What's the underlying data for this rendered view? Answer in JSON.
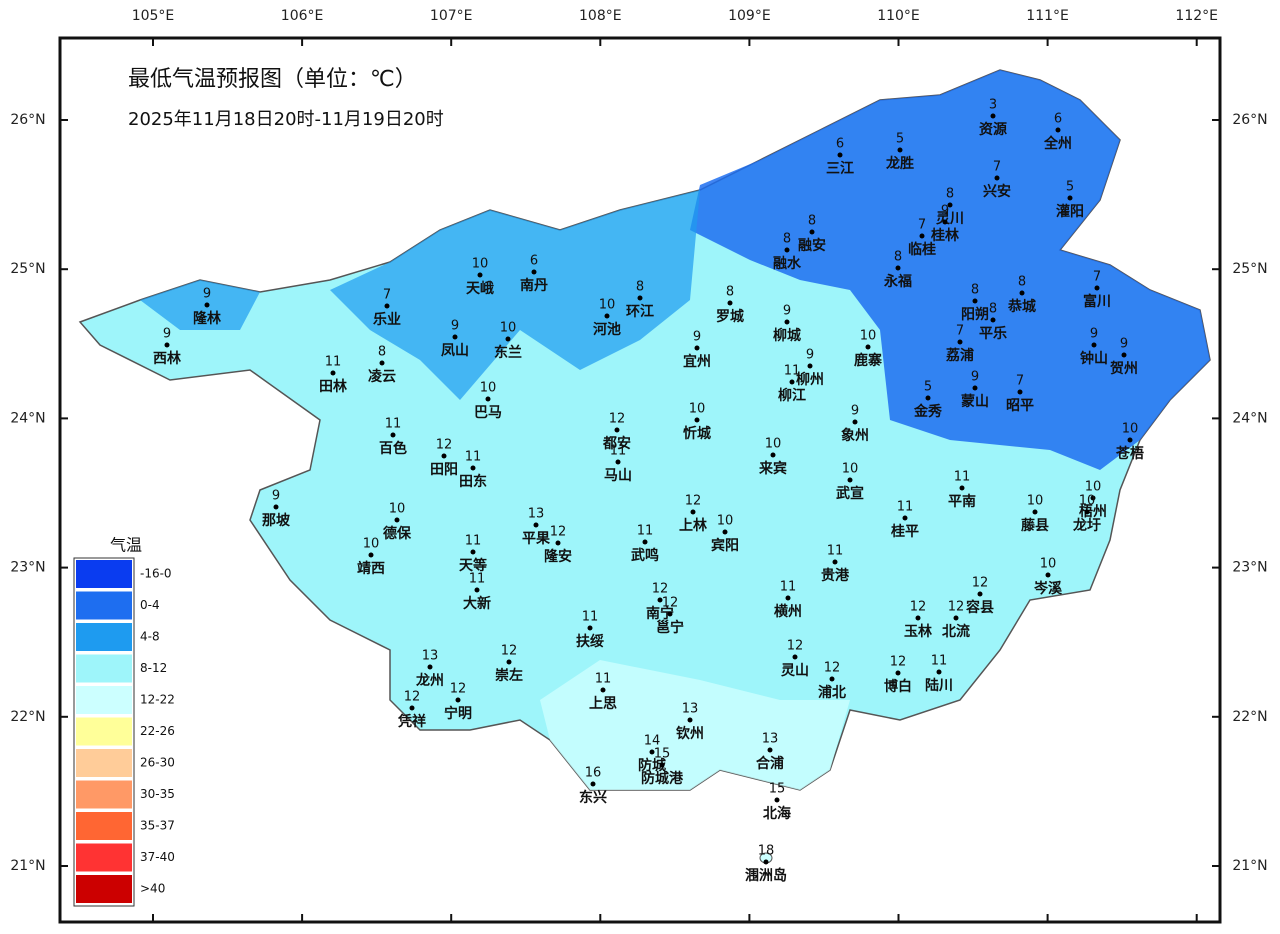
{
  "map": {
    "title": "最低气温预报图（单位：℃）",
    "subtitle": "2025年11月18日20时-11月19日20时",
    "lon_ticks": [
      {
        "value": 105,
        "label": "105°E"
      },
      {
        "value": 106,
        "label": "106°E"
      },
      {
        "value": 107,
        "label": "107°E"
      },
      {
        "value": 108,
        "label": "108°E"
      },
      {
        "value": 109,
        "label": "109°E"
      },
      {
        "value": 110,
        "label": "110°E"
      },
      {
        "value": 111,
        "label": "111°E"
      },
      {
        "value": 112,
        "label": "112°E"
      }
    ],
    "lat_ticks": [
      {
        "value": 26,
        "label": "26°N"
      },
      {
        "value": 25,
        "label": "25°N"
      },
      {
        "value": 24,
        "label": "24°N"
      },
      {
        "value": 23,
        "label": "23°N"
      },
      {
        "value": 22,
        "label": "22°N"
      },
      {
        "value": 21,
        "label": "21°N"
      }
    ],
    "legend": {
      "title": "气温",
      "items": [
        {
          "label": "-16-0",
          "color": "#0a3cf0"
        },
        {
          "label": "0-4",
          "color": "#1e6ef0"
        },
        {
          "label": "4-8",
          "color": "#1e9bf0"
        },
        {
          "label": "8-12",
          "color": "#9ef5fa"
        },
        {
          "label": "12-22",
          "color": "#ccffff"
        },
        {
          "label": "22-26",
          "color": "#ffff99"
        },
        {
          "label": "26-30",
          "color": "#ffcc99"
        },
        {
          "label": "30-35",
          "color": "#ff9966"
        },
        {
          "label": "35-37",
          "color": "#ff6633"
        },
        {
          "label": "37-40",
          "color": "#ff3333"
        },
        {
          "label": ">40",
          "color": "#cc0000"
        }
      ]
    },
    "stations": [
      {
        "name": "资源",
        "value": 3
      },
      {
        "name": "全州",
        "value": 6
      },
      {
        "name": "三江",
        "value": 6
      },
      {
        "name": "龙胜",
        "value": 5
      },
      {
        "name": "兴安",
        "value": 7
      },
      {
        "name": "灌阳",
        "value": 5
      },
      {
        "name": "灵川",
        "value": 8
      },
      {
        "name": "桂林",
        "value": 9
      },
      {
        "name": "临桂",
        "value": 7
      },
      {
        "name": "融安",
        "value": 8
      },
      {
        "name": "融水",
        "value": 8
      },
      {
        "name": "永福",
        "value": 8
      },
      {
        "name": "富川",
        "value": 7
      },
      {
        "name": "恭城",
        "value": 8
      },
      {
        "name": "阳朔",
        "value": 8
      },
      {
        "name": "平乐",
        "value": 8
      },
      {
        "name": "荔浦",
        "value": 7
      },
      {
        "name": "钟山",
        "value": 9
      },
      {
        "name": "贺州",
        "value": 9
      },
      {
        "name": "鹿寨",
        "value": 10
      },
      {
        "name": "柳城",
        "value": 9
      },
      {
        "name": "柳州",
        "value": 9
      },
      {
        "name": "柳江",
        "value": 11
      },
      {
        "name": "金秀",
        "value": 5
      },
      {
        "name": "蒙山",
        "value": 9
      },
      {
        "name": "昭平",
        "value": 7
      },
      {
        "name": "苍梧",
        "value": 10
      },
      {
        "name": "象州",
        "value": 9
      },
      {
        "name": "来宾",
        "value": 10
      },
      {
        "name": "武宣",
        "value": 10
      },
      {
        "name": "平南",
        "value": 11
      },
      {
        "name": "藤县",
        "value": 10
      },
      {
        "name": "梧州",
        "value": 10
      },
      {
        "name": "龙圩",
        "value": 10
      },
      {
        "name": "桂平",
        "value": 11
      },
      {
        "name": "贵港",
        "value": 11
      },
      {
        "name": "岑溪",
        "value": 10
      },
      {
        "name": "容县",
        "value": 12
      },
      {
        "name": "北流",
        "value": 12
      },
      {
        "name": "玉林",
        "value": 12
      },
      {
        "name": "横州",
        "value": 11
      },
      {
        "name": "灵山",
        "value": 12
      },
      {
        "name": "浦北",
        "value": 12
      },
      {
        "name": "博白",
        "value": 12
      },
      {
        "name": "陆川",
        "value": 11
      },
      {
        "name": "合浦",
        "value": 13
      },
      {
        "name": "北海",
        "value": 15
      },
      {
        "name": "涠洲岛",
        "value": 18
      },
      {
        "name": "钦州",
        "value": 13
      },
      {
        "name": "防城",
        "value": 14
      },
      {
        "name": "防城港",
        "value": 15
      },
      {
        "name": "东兴",
        "value": 16
      },
      {
        "name": "上思",
        "value": 11
      },
      {
        "name": "南宁",
        "value": 12
      },
      {
        "name": "邕宁",
        "value": 12
      },
      {
        "name": "扶绥",
        "value": 11
      },
      {
        "name": "武鸣",
        "value": 11
      },
      {
        "name": "宾阳",
        "value": 10
      },
      {
        "name": "上林",
        "value": 12
      },
      {
        "name": "都安",
        "value": 12
      },
      {
        "name": "马山",
        "value": 11
      },
      {
        "name": "忻城",
        "value": 10
      },
      {
        "name": "宜州",
        "value": 9
      },
      {
        "name": "罗城",
        "value": 8
      },
      {
        "name": "环江",
        "value": 8
      },
      {
        "name": "河池",
        "value": 10
      },
      {
        "name": "南丹",
        "value": 6
      },
      {
        "name": "天峨",
        "value": 10
      },
      {
        "name": "凤山",
        "value": 9
      },
      {
        "name": "东兰",
        "value": 10
      },
      {
        "name": "乐业",
        "value": 7
      },
      {
        "name": "凌云",
        "value": 8
      },
      {
        "name": "隆林",
        "value": 9
      },
      {
        "name": "西林",
        "value": 9
      },
      {
        "name": "田林",
        "value": 11
      },
      {
        "name": "巴马",
        "value": 10
      },
      {
        "name": "百色",
        "value": 11
      },
      {
        "name": "田阳",
        "value": 12
      },
      {
        "name": "田东",
        "value": 11
      },
      {
        "name": "那坡",
        "value": 9
      },
      {
        "name": "德保",
        "value": 10
      },
      {
        "name": "靖西",
        "value": 10
      },
      {
        "name": "平果",
        "value": 13
      },
      {
        "name": "隆安",
        "value": 12
      },
      {
        "name": "天等",
        "value": 11
      },
      {
        "name": "大新",
        "value": 11
      },
      {
        "name": "崇左",
        "value": 12
      },
      {
        "name": "龙州",
        "value": 13
      },
      {
        "name": "宁明",
        "value": 12
      },
      {
        "name": "凭祥",
        "value": 12
      }
    ]
  }
}
